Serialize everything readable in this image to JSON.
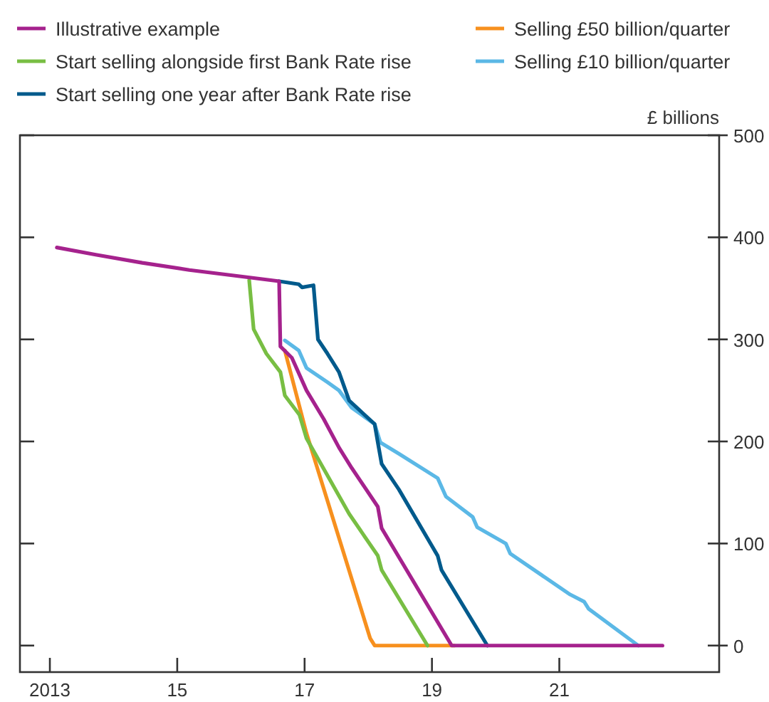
{
  "chart_data": {
    "type": "line",
    "ylabel": "£ billions",
    "legend": "top",
    "grid": false,
    "line_style": "solid",
    "marker": "none",
    "xlim": [
      2012.53,
      2023.51
    ],
    "xticks": [
      {
        "value": 2013,
        "label": "2013"
      },
      {
        "value": 2015,
        "label": "15"
      },
      {
        "value": 2017,
        "label": "17"
      },
      {
        "value": 2019,
        "label": "19"
      },
      {
        "value": 2021,
        "label": "21"
      }
    ],
    "ylim": [
      -26,
      500
    ],
    "yticks": [
      0,
      100,
      200,
      300,
      400,
      500
    ],
    "series": [
      {
        "name": "Illustrative example",
        "color": "#a5228d",
        "x": [
          2013.11,
          2013.72,
          2014.45,
          2015.19,
          2016.09,
          2016.6,
          2016.62,
          2016.8,
          2017.03,
          2017.3,
          2017.54,
          2017.74,
          2018.15,
          2018.21,
          2019.31,
          2022.62
        ],
        "values": [
          390,
          383,
          375,
          368,
          361,
          357,
          293,
          282,
          250,
          222,
          194,
          174,
          136,
          115,
          0,
          0
        ]
      },
      {
        "name": "Start selling alongside first Bank Rate rise",
        "color": "#78be43",
        "x": [
          2016.13,
          2016.2,
          2016.4,
          2016.62,
          2016.69,
          2016.92,
          2017.03,
          2017.7,
          2018.15,
          2018.21,
          2018.93
        ],
        "values": [
          358,
          310,
          286,
          268,
          245,
          226,
          203,
          129,
          88,
          74,
          0
        ]
      },
      {
        "name": "Start selling one year after Bank Rate rise",
        "color": "#005a8c",
        "x": [
          2016.6,
          2016.91,
          2016.96,
          2017.14,
          2017.21,
          2017.36,
          2017.54,
          2017.7,
          2018.1,
          2018.15,
          2018.21,
          2018.48,
          2019.09,
          2019.15,
          2019.87
        ],
        "values": [
          357,
          354,
          351,
          353,
          300,
          286,
          268,
          240,
          217,
          199,
          178,
          153,
          88,
          74,
          0
        ]
      },
      {
        "name": "Selling £50 billion/quarter",
        "color": "#f7901e",
        "x": [
          2016.69,
          2017.03,
          2018.03,
          2018.1,
          2019.35
        ],
        "values": [
          289,
          208,
          7,
          0,
          0
        ]
      },
      {
        "name": "Selling £10 billion/quarter",
        "color": "#5bb8e6",
        "x": [
          2016.69,
          2016.91,
          2017.03,
          2017.36,
          2017.54,
          2017.74,
          2018.1,
          2018.19,
          2018.48,
          2019.09,
          2019.22,
          2019.64,
          2019.71,
          2020.16,
          2020.23,
          2021.17,
          2021.39,
          2021.46,
          2022.24
        ],
        "values": [
          299,
          289,
          272,
          258,
          250,
          233,
          217,
          199,
          188,
          164,
          146,
          126,
          116,
          100,
          90,
          50,
          43,
          36,
          0
        ]
      }
    ]
  }
}
